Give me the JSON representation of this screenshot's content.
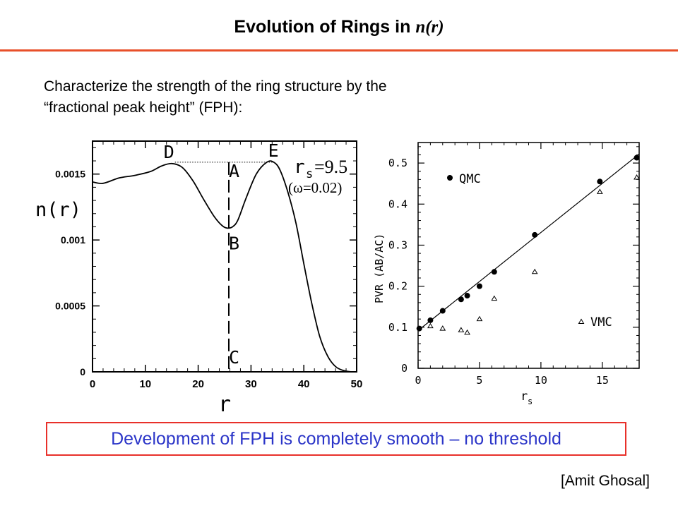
{
  "title": {
    "main": "Evolution of Rings in ",
    "italic": "n(r)"
  },
  "intro": {
    "line1": "Characterize the strength of the ring structure by the",
    "line2": "“fractional peak height” (FPH):"
  },
  "chart_data": [
    {
      "type": "line",
      "title": "",
      "xlabel": "r",
      "ylabel": "n(r)",
      "xlim": [
        0,
        50
      ],
      "ylim": [
        0,
        0.00175
      ],
      "x_ticks": [
        "0",
        "10",
        "20",
        "30",
        "40",
        "50"
      ],
      "y_ticks": [
        "0",
        "0.0005",
        "0.001",
        "0.0015"
      ],
      "series": [
        {
          "x": [
            0,
            2,
            5,
            8,
            11,
            13,
            15,
            17,
            19,
            21,
            23,
            24.5,
            25.5,
            26.5,
            27.5,
            29,
            31,
            33,
            34.3,
            35.5,
            37,
            38.5,
            40,
            41.5,
            43,
            44.5,
            46,
            47.5,
            49,
            50
          ],
          "y": [
            0.00144,
            0.00143,
            0.00147,
            0.00149,
            0.00152,
            0.00156,
            0.00158,
            0.00155,
            0.00145,
            0.00131,
            0.00118,
            0.00111,
            0.00109,
            0.0011,
            0.00115,
            0.00131,
            0.0015,
            0.00159,
            0.00159,
            0.00153,
            0.00136,
            0.00113,
            0.00082,
            0.00052,
            0.00027,
            0.00012,
            4e-05,
            1e-05,
            0.0,
            0.0
          ]
        }
      ],
      "annotations": [
        {
          "text": "D",
          "x": 15.6,
          "y": 0.00158
        },
        {
          "text": "E",
          "x": 34.3,
          "y": 0.00159
        },
        {
          "text": "A",
          "x": 25.8,
          "y": 0.00159
        },
        {
          "text": "B",
          "x": 25.8,
          "y": 0.00109
        },
        {
          "text": "C",
          "x": 25.8,
          "y": 0.0
        }
      ],
      "labels": {
        "rs": "r",
        "rs_sub": "s",
        "rs_value": "=9.5",
        "omega": "(ω=0.02)"
      }
    },
    {
      "type": "scatter",
      "title": "",
      "xlabel": "r",
      "xlabel_sub": "s",
      "ylabel": "PVR (AB/AC)",
      "xlim": [
        0,
        18
      ],
      "ylim": [
        0,
        0.55
      ],
      "x_ticks": [
        "0",
        "5",
        "10",
        "15"
      ],
      "y_ticks": [
        "0",
        "0.1",
        "0.2",
        "0.3",
        "0.4",
        "0.5"
      ],
      "series": [
        {
          "name": "QMC",
          "x": [
            0.1,
            1.0,
            2.0,
            3.5,
            4.0,
            5.0,
            6.2,
            9.5,
            14.8,
            17.8
          ],
          "y": [
            0.097,
            0.117,
            0.14,
            0.168,
            0.177,
            0.2,
            0.235,
            0.325,
            0.455,
            0.513
          ]
        },
        {
          "name": "VMC",
          "x": [
            1.0,
            2.0,
            3.5,
            4.0,
            5.0,
            6.2,
            9.5,
            14.8,
            17.8
          ],
          "y": [
            0.103,
            0.097,
            0.093,
            0.087,
            0.12,
            0.17,
            0.235,
            0.43,
            0.465
          ]
        },
        {
          "name": "fit",
          "x": [
            0,
            18
          ],
          "y": [
            0.092,
            0.522
          ]
        }
      ]
    }
  ],
  "conclusion": "Development of FPH is completely smooth – no threshold",
  "credit": "[Amit Ghosal]"
}
